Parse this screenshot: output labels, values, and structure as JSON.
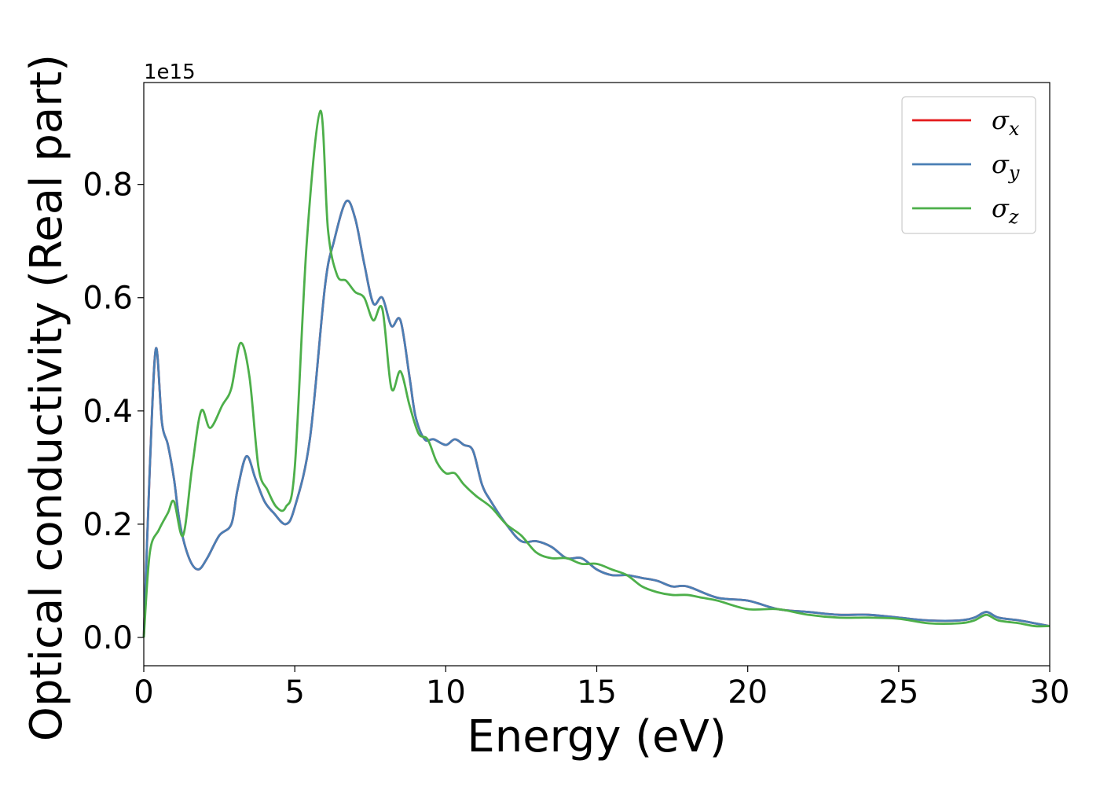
{
  "chart_data": {
    "type": "line",
    "xlabel": "Energy (eV)",
    "ylabel": "Optical conductivity (Real part)",
    "y_offset_label": "1e15",
    "xlim": [
      0,
      30
    ],
    "ylim": [
      -0.05,
      0.98
    ],
    "xticks": [
      0,
      5,
      10,
      15,
      20,
      25,
      30
    ],
    "xtick_labels": [
      "0",
      "5",
      "10",
      "15",
      "20",
      "25",
      "30"
    ],
    "yticks": [
      0.0,
      0.2,
      0.4,
      0.6,
      0.8
    ],
    "ytick_labels": [
      "0.0",
      "0.2",
      "0.4",
      "0.6",
      "0.8"
    ],
    "grid": false,
    "legend_position": "top-right",
    "series": [
      {
        "name": "σ_x",
        "label_base": "σ",
        "label_sub": "x",
        "color": "#e41a1c",
        "x": [
          0,
          0.2,
          0.4,
          0.6,
          0.8,
          1.0,
          1.2,
          1.5,
          1.8,
          2.1,
          2.5,
          2.9,
          3.1,
          3.4,
          3.7,
          4.0,
          4.3,
          4.7,
          5.0,
          5.5,
          6.0,
          6.3,
          6.7,
          7.0,
          7.3,
          7.6,
          7.9,
          8.2,
          8.5,
          8.8,
          9.0,
          9.3,
          9.6,
          10.0,
          10.3,
          10.6,
          10.9,
          11.2,
          11.5,
          12.0,
          12.5,
          13.0,
          13.5,
          14.0,
          14.5,
          15.0,
          15.5,
          16.0,
          16.5,
          17.0,
          17.5,
          18.0,
          19.0,
          20.0,
          21.0,
          22.0,
          23.0,
          24.0,
          25.0,
          26.0,
          27.0,
          27.5,
          27.9,
          28.3,
          29.0,
          29.5,
          30.0
        ],
        "values": [
          0.0,
          0.3,
          0.51,
          0.38,
          0.34,
          0.28,
          0.2,
          0.14,
          0.12,
          0.14,
          0.18,
          0.2,
          0.26,
          0.32,
          0.28,
          0.24,
          0.22,
          0.2,
          0.23,
          0.35,
          0.62,
          0.7,
          0.77,
          0.74,
          0.66,
          0.59,
          0.6,
          0.55,
          0.56,
          0.46,
          0.39,
          0.35,
          0.35,
          0.34,
          0.35,
          0.34,
          0.33,
          0.27,
          0.24,
          0.2,
          0.17,
          0.17,
          0.16,
          0.14,
          0.14,
          0.12,
          0.11,
          0.11,
          0.105,
          0.1,
          0.09,
          0.09,
          0.07,
          0.065,
          0.05,
          0.045,
          0.04,
          0.04,
          0.035,
          0.03,
          0.03,
          0.035,
          0.045,
          0.035,
          0.03,
          0.025,
          0.02
        ]
      },
      {
        "name": "σ_y",
        "label_base": "σ",
        "label_sub": "y",
        "color": "#4a7fb5",
        "x": [
          0,
          0.2,
          0.4,
          0.6,
          0.8,
          1.0,
          1.2,
          1.5,
          1.8,
          2.1,
          2.5,
          2.9,
          3.1,
          3.4,
          3.7,
          4.0,
          4.3,
          4.7,
          5.0,
          5.5,
          6.0,
          6.3,
          6.7,
          7.0,
          7.3,
          7.6,
          7.9,
          8.2,
          8.5,
          8.8,
          9.0,
          9.3,
          9.6,
          10.0,
          10.3,
          10.6,
          10.9,
          11.2,
          11.5,
          12.0,
          12.5,
          13.0,
          13.5,
          14.0,
          14.5,
          15.0,
          15.5,
          16.0,
          16.5,
          17.0,
          17.5,
          18.0,
          19.0,
          20.0,
          21.0,
          22.0,
          23.0,
          24.0,
          25.0,
          26.0,
          27.0,
          27.5,
          27.9,
          28.3,
          29.0,
          29.5,
          30.0
        ],
        "values": [
          0.0,
          0.3,
          0.51,
          0.38,
          0.34,
          0.28,
          0.2,
          0.14,
          0.12,
          0.14,
          0.18,
          0.2,
          0.26,
          0.32,
          0.28,
          0.24,
          0.22,
          0.2,
          0.23,
          0.35,
          0.62,
          0.7,
          0.77,
          0.74,
          0.66,
          0.59,
          0.6,
          0.55,
          0.56,
          0.46,
          0.39,
          0.35,
          0.35,
          0.34,
          0.35,
          0.34,
          0.33,
          0.27,
          0.24,
          0.2,
          0.17,
          0.17,
          0.16,
          0.14,
          0.14,
          0.12,
          0.11,
          0.11,
          0.105,
          0.1,
          0.09,
          0.09,
          0.07,
          0.065,
          0.05,
          0.045,
          0.04,
          0.04,
          0.035,
          0.03,
          0.03,
          0.035,
          0.045,
          0.035,
          0.03,
          0.025,
          0.02
        ]
      },
      {
        "name": "σ_z",
        "label_base": "σ",
        "label_sub": "z",
        "color": "#4daf4a",
        "x": [
          0,
          0.2,
          0.5,
          0.8,
          1.0,
          1.3,
          1.6,
          1.9,
          2.2,
          2.6,
          2.9,
          3.2,
          3.5,
          3.8,
          4.1,
          4.4,
          4.7,
          5.0,
          5.4,
          5.85,
          6.1,
          6.4,
          6.7,
          7.0,
          7.3,
          7.6,
          7.9,
          8.2,
          8.5,
          8.8,
          9.1,
          9.4,
          9.7,
          10.0,
          10.3,
          10.6,
          11.0,
          11.5,
          12.0,
          12.5,
          13.0,
          13.5,
          14.0,
          14.5,
          15.0,
          15.5,
          16.0,
          16.5,
          17.0,
          17.5,
          18.0,
          18.5,
          19.0,
          20.0,
          21.0,
          22.0,
          23.0,
          24.0,
          25.0,
          26.0,
          27.0,
          27.5,
          27.9,
          28.3,
          29.0,
          29.5,
          30.0
        ],
        "values": [
          0.0,
          0.15,
          0.19,
          0.22,
          0.24,
          0.18,
          0.3,
          0.4,
          0.37,
          0.41,
          0.44,
          0.52,
          0.46,
          0.3,
          0.26,
          0.23,
          0.23,
          0.3,
          0.7,
          0.93,
          0.72,
          0.64,
          0.63,
          0.61,
          0.6,
          0.56,
          0.58,
          0.44,
          0.47,
          0.41,
          0.36,
          0.35,
          0.31,
          0.29,
          0.29,
          0.27,
          0.25,
          0.23,
          0.2,
          0.18,
          0.15,
          0.14,
          0.14,
          0.13,
          0.13,
          0.12,
          0.11,
          0.09,
          0.08,
          0.075,
          0.075,
          0.07,
          0.065,
          0.05,
          0.05,
          0.04,
          0.035,
          0.035,
          0.033,
          0.025,
          0.025,
          0.03,
          0.04,
          0.03,
          0.025,
          0.02,
          0.02
        ]
      }
    ]
  }
}
